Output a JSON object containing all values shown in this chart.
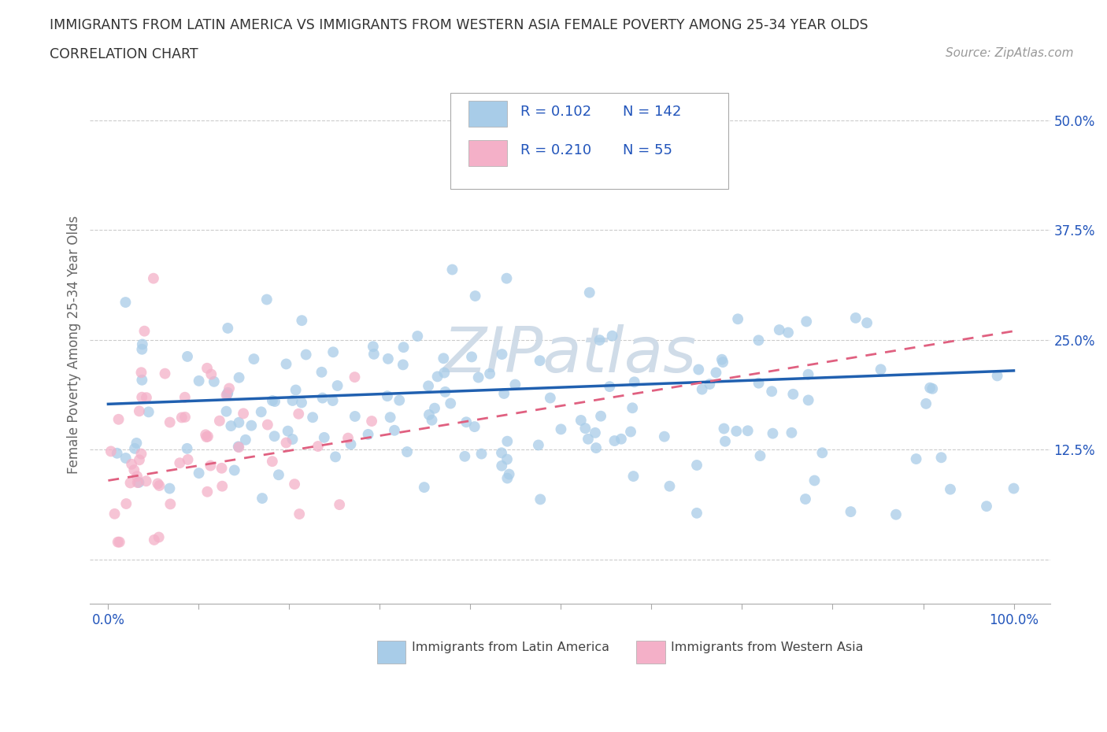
{
  "title_line1": "IMMIGRANTS FROM LATIN AMERICA VS IMMIGRANTS FROM WESTERN ASIA FEMALE POVERTY AMONG 25-34 YEAR OLDS",
  "title_line2": "CORRELATION CHART",
  "source": "Source: ZipAtlas.com",
  "ylabel": "Female Poverty Among 25-34 Year Olds",
  "latin_R": 0.102,
  "latin_N": 142,
  "western_R": 0.21,
  "western_N": 55,
  "blue_color": "#a8cce8",
  "pink_color": "#f4b0c8",
  "blue_line_color": "#2060b0",
  "pink_line_color": "#e06080",
  "legend_text_color": "#2255bb",
  "watermark": "ZIPatlas",
  "watermark_color": "#d0dce8",
  "background_color": "#ffffff",
  "grid_color": "#cccccc",
  "title_color": "#333333",
  "tick_color": "#2255bb",
  "axis_color": "#aaaaaa",
  "ylim_low": 0.0,
  "ylim_high": 0.5,
  "xlim_low": 0.0,
  "xlim_high": 1.0
}
